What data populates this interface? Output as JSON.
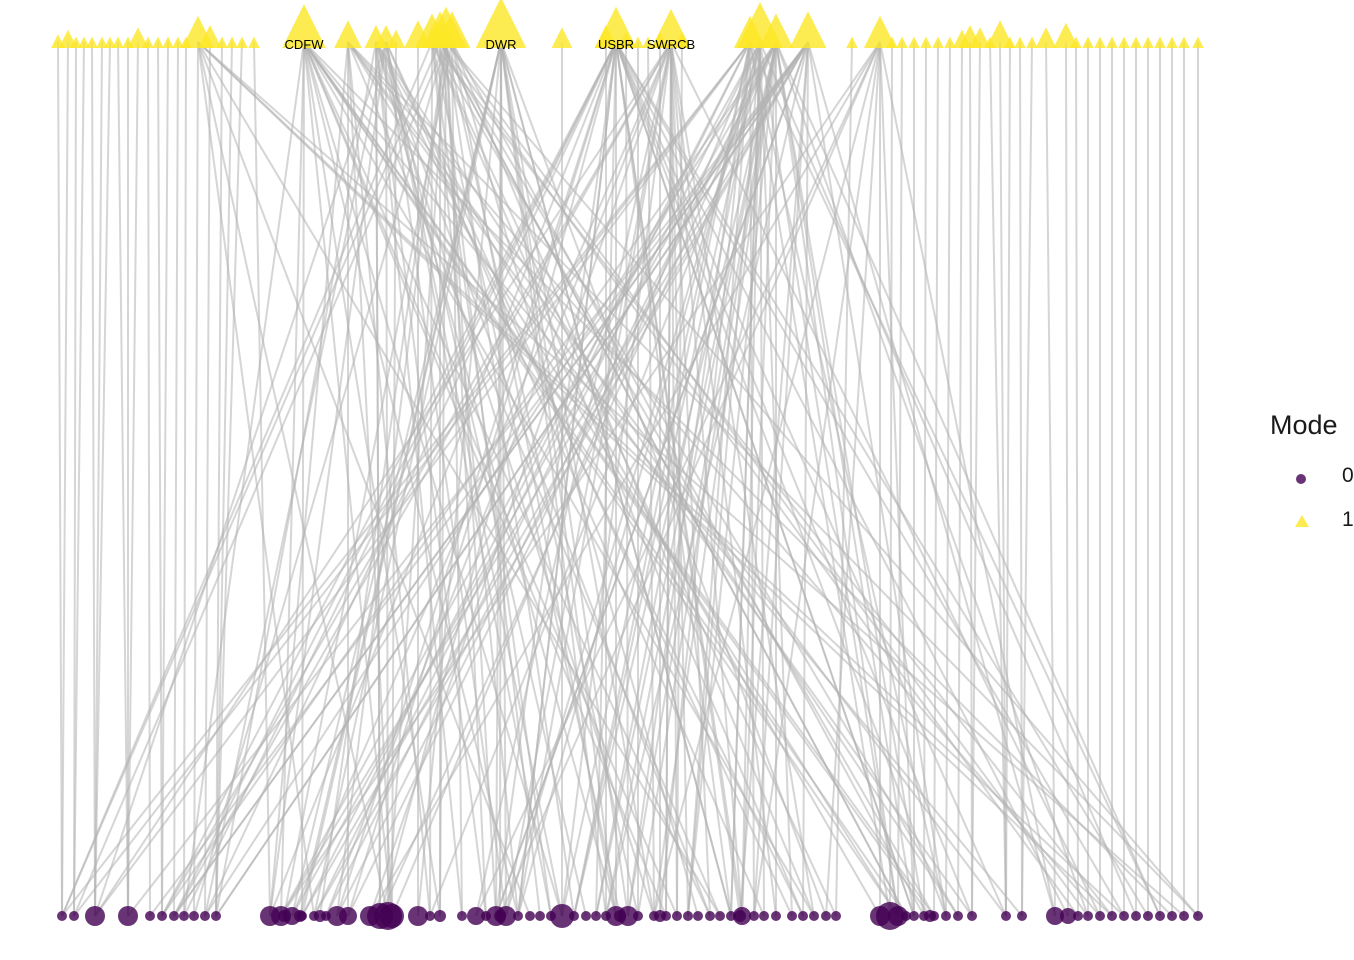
{
  "chart_data": {
    "type": "bipartite-network",
    "top_nodes": {
      "count": 74,
      "mode": "1",
      "labels": [
        {
          "text": "CDFW",
          "index": 17
        },
        {
          "text": "DWR",
          "index": 31
        },
        {
          "text": "USBR",
          "index": 37
        },
        {
          "text": "SWRCB",
          "index": 41
        }
      ]
    },
    "bottom_nodes": {
      "count": 93,
      "mode": "0"
    },
    "edge_color": "#b3b3b3",
    "legend": {
      "title": "Mode",
      "items": [
        {
          "label": "0",
          "shape": "circle",
          "color": "#440154"
        },
        {
          "label": "1",
          "shape": "triangle",
          "color": "#FDE725"
        }
      ]
    }
  }
}
